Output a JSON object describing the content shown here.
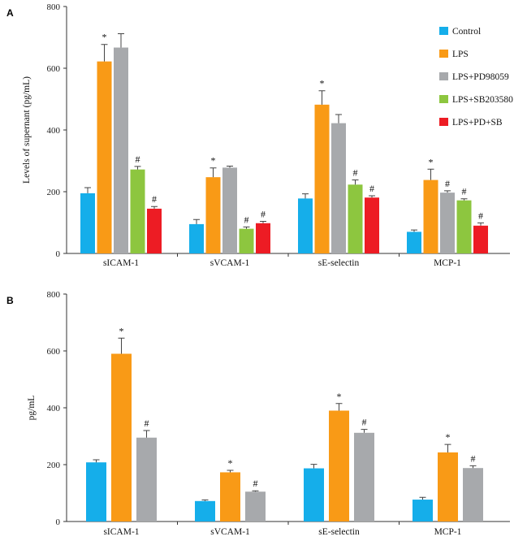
{
  "colors": {
    "Control": "#15AEEA",
    "LPS": "#F99A16",
    "LPS+PD98059": "#A7A9AC",
    "LPS+SB203580": "#8DC63F",
    "LPS+PD+SB": "#ED1C24"
  },
  "chart_data": [
    {
      "panel": "A",
      "type": "bar",
      "title": "",
      "xlabel": "",
      "ylabel": "Levels of supernant (pg/mL)",
      "ylim": [
        0,
        800
      ],
      "yticks": [
        0,
        200,
        400,
        600,
        800
      ],
      "grid": false,
      "legend_position": "top-right",
      "categories": [
        "sICAM-1",
        "sVCAM-1",
        "sE-selectin",
        "MCP-1"
      ],
      "series": [
        {
          "name": "Control",
          "values": [
            195,
            95,
            178,
            70
          ],
          "errors": [
            18,
            15,
            15,
            6
          ],
          "markers": [
            "",
            "",
            "",
            ""
          ]
        },
        {
          "name": "LPS",
          "values": [
            622,
            247,
            482,
            238
          ],
          "errors": [
            55,
            30,
            45,
            35
          ],
          "markers": [
            "*",
            "*",
            "*",
            "*"
          ]
        },
        {
          "name": "LPS+PD98059",
          "values": [
            667,
            278,
            422,
            197
          ],
          "errors": [
            45,
            5,
            28,
            6
          ],
          "markers": [
            "",
            "",
            "",
            "#"
          ]
        },
        {
          "name": "LPS+SB203580",
          "values": [
            272,
            80,
            223,
            172
          ],
          "errors": [
            10,
            6,
            15,
            5
          ],
          "markers": [
            "#",
            "#",
            "#",
            "#"
          ]
        },
        {
          "name": "LPS+PD+SB",
          "values": [
            145,
            98,
            181,
            90
          ],
          "errors": [
            7,
            6,
            6,
            9
          ],
          "markers": [
            "#",
            "#",
            "#",
            "#"
          ]
        }
      ]
    },
    {
      "panel": "B",
      "type": "bar",
      "title": "",
      "xlabel": "",
      "ylabel": "pg/mL",
      "ylim": [
        0,
        800
      ],
      "yticks": [
        0,
        200,
        400,
        600,
        800
      ],
      "grid": false,
      "legend_position": "none",
      "categories": [
        "sICAM-1",
        "sVCAM-1",
        "sE-selectin",
        "MCP-1"
      ],
      "series": [
        {
          "name": "Control",
          "values": [
            208,
            72,
            187,
            77
          ],
          "errors": [
            9,
            4,
            14,
            8
          ],
          "markers": [
            "",
            "",
            "",
            ""
          ]
        },
        {
          "name": "LPS",
          "values": [
            590,
            173,
            390,
            243
          ],
          "errors": [
            55,
            7,
            25,
            28
          ],
          "markers": [
            "*",
            "*",
            "*",
            "*"
          ]
        },
        {
          "name": "LPS+PD98059",
          "values": [
            295,
            105,
            312,
            188
          ],
          "errors": [
            25,
            3,
            12,
            8
          ],
          "markers": [
            "#",
            "#",
            "#",
            "#"
          ]
        }
      ]
    }
  ]
}
